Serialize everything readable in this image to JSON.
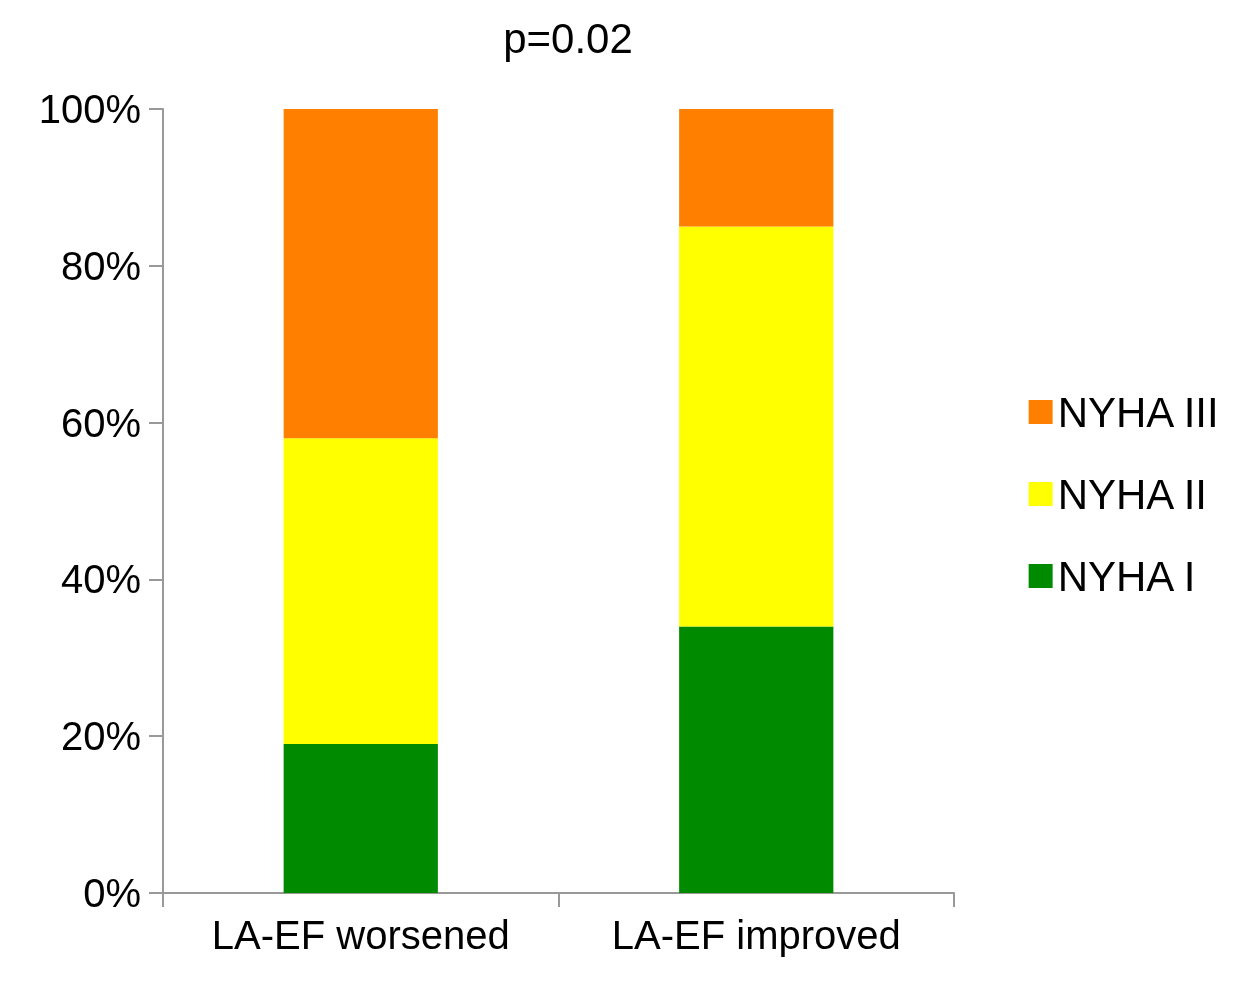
{
  "chart_data": {
    "type": "bar",
    "title": "p=0.02",
    "stacked": true,
    "categories": [
      "LA-EF worsened",
      "LA-EF improved"
    ],
    "series": [
      {
        "name": "NYHA I",
        "color": "#008a00",
        "values": [
          19,
          34
        ]
      },
      {
        "name": "NYHA II",
        "color": "#ffff00",
        "values": [
          39,
          51
        ]
      },
      {
        "name": "NYHA III",
        "color": "#ff7f00",
        "values": [
          42,
          15
        ]
      }
    ],
    "ylim": [
      0,
      100
    ],
    "yticks": [
      {
        "value": 0,
        "label": "0%"
      },
      {
        "value": 20,
        "label": "20%"
      },
      {
        "value": 40,
        "label": "40%"
      },
      {
        "value": 60,
        "label": "60%"
      },
      {
        "value": 80,
        "label": "80%"
      },
      {
        "value": 100,
        "label": "100%"
      }
    ],
    "grid": false,
    "legend": "right"
  }
}
